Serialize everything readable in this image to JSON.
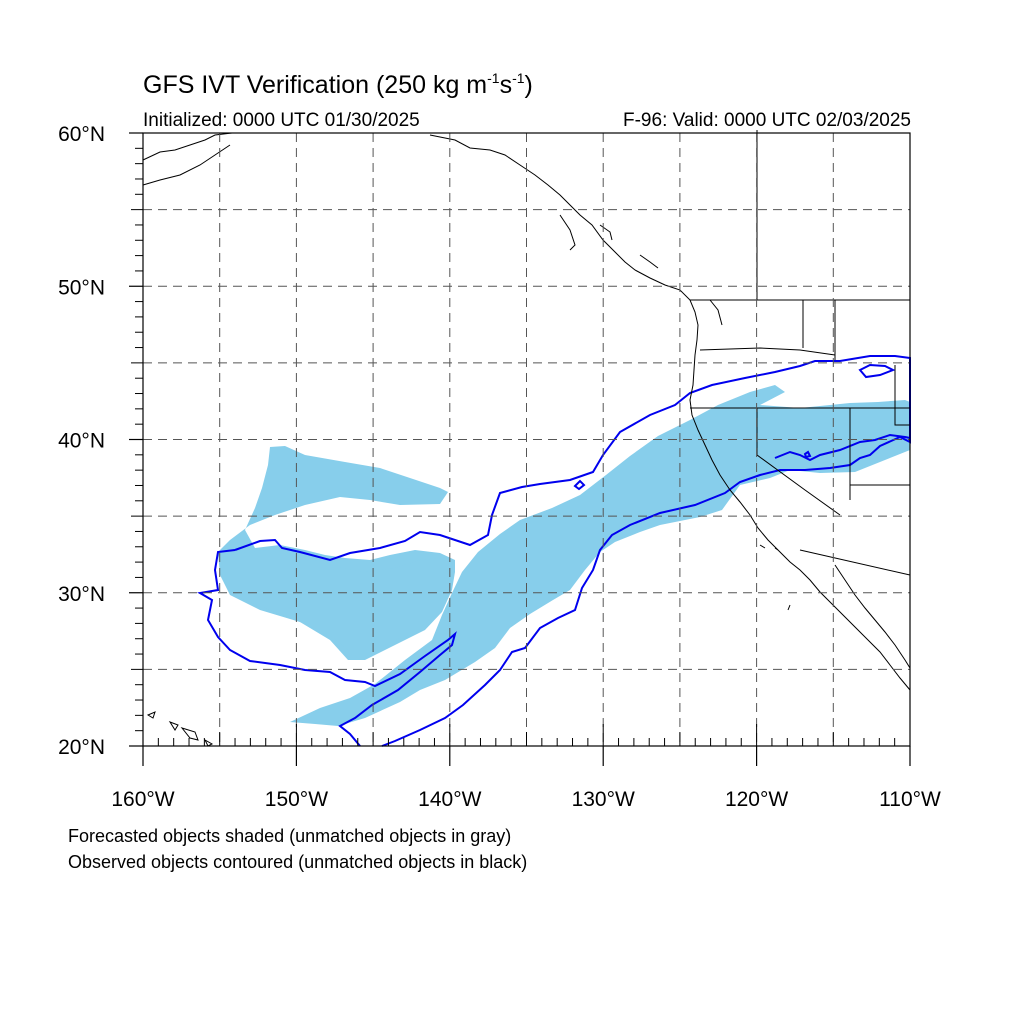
{
  "title": {
    "prefix": "GFS IVT Verification (250 kg m",
    "sup1": "-1",
    "mid": "s",
    "sup2": "-1",
    "suffix": ")"
  },
  "subtitle_left": "Initialized: 0000 UTC 01/30/2025",
  "subtitle_right": "F-96: Valid: 0000 UTC 02/03/2025",
  "map": {
    "lon_range": [
      -160,
      -110
    ],
    "lat_range": [
      20,
      60
    ],
    "lon_ticks": [
      {
        "value": -160,
        "label": "160°W"
      },
      {
        "value": -150,
        "label": "150°W"
      },
      {
        "value": -140,
        "label": "140°W"
      },
      {
        "value": -130,
        "label": "130°W"
      },
      {
        "value": -120,
        "label": "120°W"
      },
      {
        "value": -110,
        "label": "110°W"
      }
    ],
    "lat_ticks": [
      {
        "value": 20,
        "label": "20°N"
      },
      {
        "value": 30,
        "label": "30°N"
      },
      {
        "value": 40,
        "label": "40°N"
      },
      {
        "value": 50,
        "label": "50°N"
      },
      {
        "value": 60,
        "label": "60°N"
      }
    ],
    "grid_step_deg": 5,
    "grid_dashed": true,
    "forecast_fill_color": "#87ceeb",
    "observed_contour_color": "#0000ee",
    "coastline_color": "#000000"
  },
  "legend": {
    "line1": "Forecasted objects shaded (unmatched objects in gray)",
    "line2": "Observed objects contoured (unmatched objects in black)"
  }
}
